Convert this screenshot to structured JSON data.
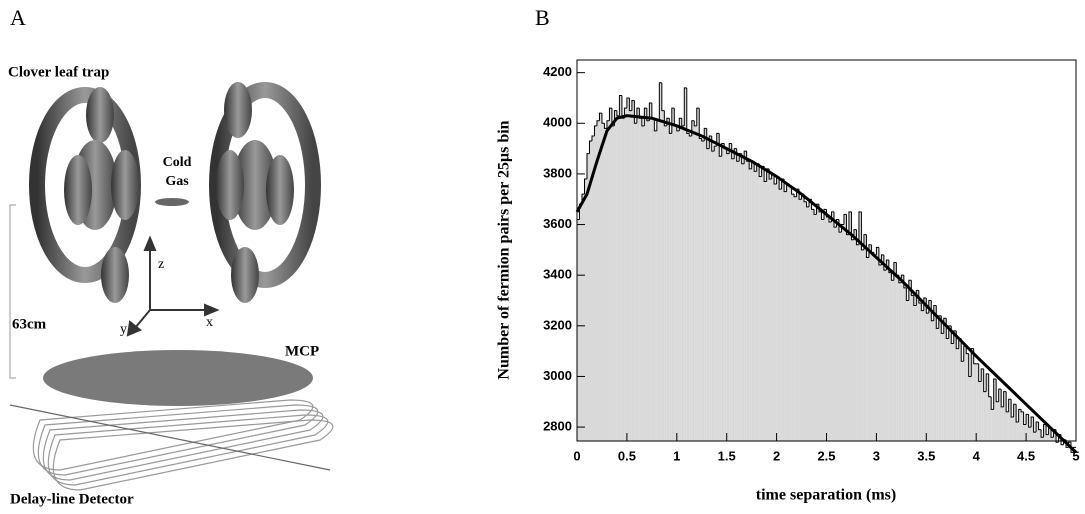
{
  "panels": {
    "a": "A",
    "b": "B"
  },
  "diagram": {
    "title": "Clover leaf trap",
    "cold_gas": [
      "Cold",
      "Gas"
    ],
    "axes": {
      "z": "z",
      "x": "x",
      "y": "y"
    },
    "scale": "63cm",
    "mcp": "MCP",
    "detector": "Delay-line Detector"
  },
  "chart_data": {
    "type": "histogram",
    "ylabel": "Number of fermion pairs per 25μs bin",
    "xlabel": "time separation (ms)",
    "color": "#d9d9d9",
    "edge_color": "#000000",
    "xlim": [
      0,
      5
    ],
    "ylim": [
      2745,
      4250
    ],
    "xticks": [
      0,
      0.5,
      1,
      1.5,
      2,
      2.5,
      3,
      3.5,
      4,
      4.5,
      5
    ],
    "yticks": [
      2800,
      3000,
      3200,
      3400,
      3600,
      3800,
      4000,
      4200
    ],
    "bins": [
      0,
      0.025,
      0.05,
      0.075,
      0.1,
      0.125,
      0.15,
      0.175,
      0.2,
      0.225,
      0.25,
      0.275,
      0.3,
      0.325,
      0.35,
      0.375,
      0.4,
      0.425,
      0.45,
      0.475,
      0.5,
      0.525,
      0.55,
      0.575,
      0.6,
      0.625,
      0.65,
      0.675,
      0.7,
      0.725,
      0.75,
      0.775,
      0.8,
      0.825,
      0.85,
      0.875,
      0.9,
      0.925,
      0.95,
      0.975,
      1,
      1.025,
      1.05,
      1.075,
      1.1,
      1.125,
      1.15,
      1.175,
      1.2,
      1.225,
      1.25,
      1.275,
      1.3,
      1.325,
      1.35,
      1.375,
      1.4,
      1.425,
      1.45,
      1.475,
      1.5,
      1.525,
      1.55,
      1.575,
      1.6,
      1.625,
      1.65,
      1.675,
      1.7,
      1.725,
      1.75,
      1.775,
      1.8,
      1.825,
      1.85,
      1.875,
      1.9,
      1.925,
      1.95,
      1.975,
      2,
      2.025,
      2.05,
      2.075,
      2.1,
      2.125,
      2.15,
      2.175,
      2.2,
      2.225,
      2.25,
      2.275,
      2.3,
      2.325,
      2.35,
      2.375,
      2.4,
      2.425,
      2.45,
      2.475,
      2.5,
      2.525,
      2.55,
      2.575,
      2.6,
      2.625,
      2.65,
      2.675,
      2.7,
      2.725,
      2.75,
      2.775,
      2.8,
      2.825,
      2.85,
      2.875,
      2.9,
      2.925,
      2.95,
      2.975,
      3,
      3.025,
      3.05,
      3.075,
      3.1,
      3.125,
      3.15,
      3.175,
      3.2,
      3.225,
      3.25,
      3.275,
      3.3,
      3.325,
      3.35,
      3.375,
      3.4,
      3.425,
      3.45,
      3.475,
      3.5,
      3.525,
      3.55,
      3.575,
      3.6,
      3.625,
      3.65,
      3.675,
      3.7,
      3.725,
      3.75,
      3.775,
      3.8,
      3.825,
      3.85,
      3.875,
      3.9,
      3.925,
      3.95,
      3.975,
      4,
      4.025,
      4.05,
      4.075,
      4.1,
      4.125,
      4.15,
      4.175,
      4.2,
      4.225,
      4.25,
      4.275,
      4.3,
      4.325,
      4.35,
      4.375,
      4.4,
      4.425,
      4.45,
      4.475,
      4.5,
      4.525,
      4.55,
      4.575,
      4.6,
      4.625,
      4.65,
      4.675,
      4.7,
      4.725,
      4.75,
      4.775,
      4.8,
      4.825,
      4.85,
      4.875,
      4.9,
      4.925,
      4.95,
      4.975,
      5
    ],
    "counts": [
      3620,
      3680,
      3720,
      3780,
      3880,
      3930,
      3950,
      3990,
      4010,
      4040,
      4000,
      3980,
      4010,
      4060,
      3990,
      4050,
      4030,
      4110,
      4020,
      4060,
      4100,
      4050,
      4090,
      4000,
      4060,
      4020,
      3990,
      4060,
      4010,
      4080,
      4020,
      3970,
      4010,
      4160,
      4050,
      3990,
      4020,
      3960,
      4060,
      3990,
      3970,
      4020,
      3990,
      4140,
      3960,
      3950,
      4010,
      3990,
      4060,
      3940,
      3930,
      3980,
      3900,
      3950,
      3890,
      3910,
      3960,
      3870,
      3920,
      3900,
      3880,
      3920,
      3860,
      3900,
      3850,
      3880,
      3840,
      3890,
      3850,
      3820,
      3850,
      3810,
      3840,
      3790,
      3830,
      3770,
      3820,
      3780,
      3800,
      3760,
      3790,
      3740,
      3780,
      3730,
      3760,
      3750,
      3720,
      3710,
      3740,
      3700,
      3720,
      3690,
      3670,
      3700,
      3660,
      3640,
      3680,
      3650,
      3620,
      3660,
      3630,
      3610,
      3650,
      3590,
      3620,
      3570,
      3600,
      3640,
      3560,
      3650,
      3540,
      3580,
      3520,
      3650,
      3500,
      3560,
      3470,
      3520,
      3490,
      3480,
      3510,
      3440,
      3480,
      3420,
      3460,
      3410,
      3380,
      3450,
      3400,
      3370,
      3400,
      3350,
      3300,
      3380,
      3320,
      3280,
      3340,
      3290,
      3260,
      3310,
      3250,
      3300,
      3220,
      3280,
      3190,
      3240,
      3170,
      3230,
      3150,
      3200,
      3130,
      3180,
      3110,
      3150,
      3060,
      3120,
      3090,
      3000,
      3110,
      3050,
      3050,
      2980,
      3030,
      2940,
      3010,
      2920,
      2870,
      2990,
      2900,
      2950,
      2880,
      2940,
      2860,
      2910,
      2840,
      2890,
      2820,
      2870,
      2860,
      2810,
      2850,
      2800,
      2840,
      2780,
      2820,
      2790,
      2760,
      2810,
      2770,
      2800,
      2760,
      2790,
      2740,
      2770,
      2730,
      2750,
      2720,
      2740,
      2700,
      2720
    ],
    "fit": {
      "color": "#000000",
      "x": [
        0,
        0.1,
        0.2,
        0.3,
        0.4,
        0.5,
        0.75,
        1,
        1.25,
        1.5,
        1.75,
        2,
        2.25,
        2.5,
        2.75,
        3,
        3.25,
        3.5,
        3.75,
        4,
        4.25,
        4.5,
        4.75,
        5
      ],
      "values": [
        3650,
        3720,
        3850,
        3970,
        4020,
        4030,
        4020,
        3990,
        3950,
        3900,
        3850,
        3790,
        3720,
        3640,
        3560,
        3470,
        3380,
        3280,
        3180,
        3080,
        2985,
        2890,
        2795,
        2700
      ]
    }
  }
}
